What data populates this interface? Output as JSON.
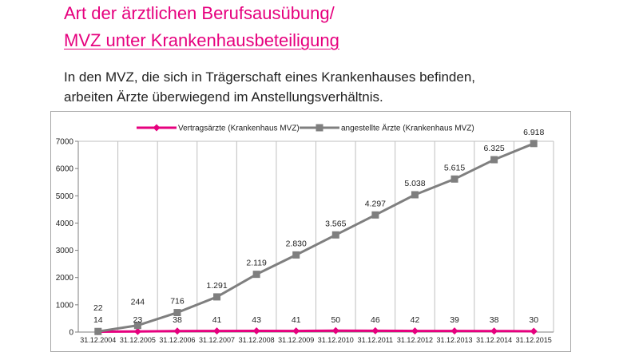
{
  "header": {
    "title_line1": "Art der ärztlichen Berufsausübung/",
    "title_line2": "MVZ unter Krankenhausbeteiligung",
    "intro_line1": "In den MVZ, die sich in Trägerschaft eines Krankenhauses befinden,",
    "intro_line2": "arbeiten Ärzte überwiegend im Anstellungsverhältnis."
  },
  "colors": {
    "title": "#e6007e",
    "series_vertrag": "#e6007e",
    "series_angestellt": "#7f7f7f",
    "grid": "#bfbfbf"
  },
  "chart_data": {
    "type": "line",
    "categories": [
      "31.12.2004",
      "31.12.2005",
      "31.12.2006",
      "31.12.2007",
      "31.12.2008",
      "31.12.2009",
      "31.12.2010",
      "31.12.2011",
      "31.12.2012",
      "31.12.2013",
      "31.12.2014",
      "31.12.2015"
    ],
    "series": [
      {
        "name": "Vertragsärzte (Krankenhaus MVZ)",
        "values": [
          14,
          23,
          38,
          41,
          43,
          41,
          50,
          46,
          42,
          39,
          38,
          30
        ],
        "labels": [
          "14",
          "23",
          "38",
          "41",
          "43",
          "41",
          "50",
          "46",
          "42",
          "39",
          "38",
          "30"
        ],
        "color": "#e6007e",
        "marker": "diamond"
      },
      {
        "name": "angestellte Ärzte (Krankenhaus MVZ)",
        "values": [
          22,
          244,
          716,
          1291,
          2119,
          2830,
          3565,
          4297,
          5038,
          5615,
          6325,
          6918
        ],
        "labels": [
          "22",
          "244",
          "716",
          "1.291",
          "2.119",
          "2.830",
          "3.565",
          "4.297",
          "5.038",
          "5.615",
          "6.325",
          "6.918"
        ],
        "color": "#7f7f7f",
        "marker": "square"
      }
    ],
    "ylim": [
      0,
      7000
    ],
    "yticks": [
      "0",
      "1000",
      "2000",
      "3000",
      "4000",
      "5000",
      "6000",
      "7000"
    ],
    "grid": "vertical",
    "legend": "top"
  }
}
